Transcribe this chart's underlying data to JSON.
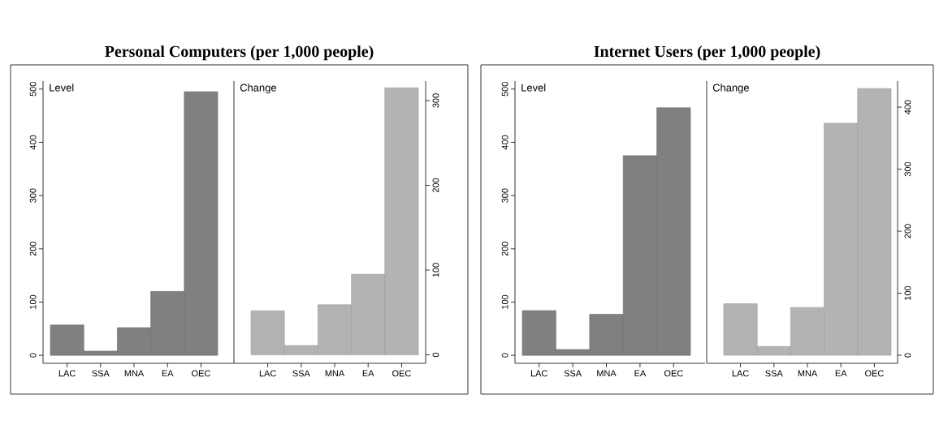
{
  "chart_data": [
    {
      "type": "bar",
      "title": "Personal Computers (per 1,000 people)",
      "annotations": [
        "Level"
      ],
      "categories": [
        "LAC",
        "SSA",
        "MNA",
        "EA",
        "OEC"
      ],
      "values": [
        57,
        8,
        52,
        120,
        495
      ],
      "color": "#808080",
      "ylim": [
        -15,
        515
      ],
      "yticks": [
        0,
        100,
        200,
        300,
        400,
        500
      ]
    },
    {
      "type": "bar",
      "annotations": [
        "Change"
      ],
      "categories": [
        "LAC",
        "SSA",
        "MNA",
        "EA",
        "OEC"
      ],
      "values": [
        52,
        11,
        59,
        95,
        315
      ],
      "color": "#b3b3b3",
      "ylim": [
        -10,
        323
      ],
      "yticks": [
        0,
        100,
        200,
        300
      ]
    },
    {
      "type": "bar",
      "title": "Internet Users (per 1,000 people)",
      "annotations": [
        "Level"
      ],
      "categories": [
        "LAC",
        "SSA",
        "MNA",
        "EA",
        "OEC"
      ],
      "values": [
        84,
        11,
        77,
        375,
        465
      ],
      "color": "#808080",
      "ylim": [
        -15,
        515
      ],
      "yticks": [
        0,
        100,
        200,
        300,
        400,
        500
      ]
    },
    {
      "type": "bar",
      "annotations": [
        "Change"
      ],
      "categories": [
        "LAC",
        "SSA",
        "MNA",
        "EA",
        "OEC"
      ],
      "values": [
        83,
        14,
        77,
        374,
        430
      ],
      "color": "#b3b3b3",
      "ylim": [
        -13,
        442
      ],
      "yticks": [
        0,
        100,
        200,
        300,
        400
      ]
    }
  ]
}
